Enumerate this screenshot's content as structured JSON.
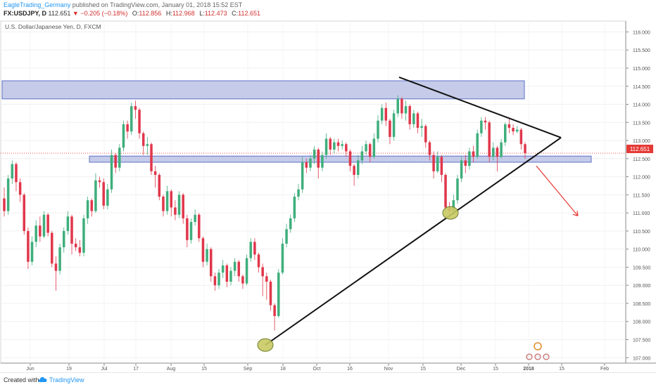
{
  "header": {
    "author": "EagleTrading_Germany",
    "published_text": "published on TradingView.com, January 01, 2018 15:52 EST",
    "symbol": "FX:USDJPY, D",
    "last": "112.651",
    "change": "▼ −0.205 (−0.18%)",
    "open_label": "O:",
    "open": "112.856",
    "high_label": "H:",
    "high": "112.968",
    "low_label": "L:",
    "low": "112.473",
    "close_label": "C:",
    "close": "112.651"
  },
  "footer": {
    "created_with": "Created with",
    "brand": "TradingView"
  },
  "colors": {
    "up": "#3fae7c",
    "down": "#e0374b",
    "zone_fill": "#c5cbe8",
    "zone_stroke": "#5f72c9",
    "trendline": "#111111",
    "arrow": "#e53935",
    "marker_fill": "#c9c963",
    "marker_stroke": "#6b7d2a",
    "price_tag": "#e53935"
  },
  "chart_data": {
    "type": "candlestick",
    "title": "U.S. Dollar/Japanese Yen, D, FXCM",
    "ylim": [
      106.85,
      116.3
    ],
    "y_ticks": [
      "116.000",
      "115.500",
      "115.000",
      "114.500",
      "114.000",
      "113.500",
      "113.000",
      "112.500",
      "112.000",
      "111.500",
      "111.000",
      "110.500",
      "110.000",
      "109.500",
      "109.000",
      "108.500",
      "108.000",
      "107.500",
      "107.000"
    ],
    "x_ticks": [
      "Jun",
      "19",
      "Jul",
      "17",
      "Aug",
      "15",
      "Sep",
      "18",
      "Oct",
      "16",
      "Nov",
      "15",
      "Dec",
      "15",
      "2018",
      "15",
      "Feb"
    ],
    "last_price": "112.651",
    "candles": [
      [
        111.4,
        111.05,
        111.7,
        110.9
      ],
      [
        111.05,
        111.95,
        112.05,
        110.95
      ],
      [
        111.95,
        112.35,
        112.45,
        111.8
      ],
      [
        112.35,
        111.85,
        112.4,
        111.6
      ],
      [
        111.85,
        111.5,
        111.95,
        111.3
      ],
      [
        111.5,
        110.5,
        111.55,
        110.4
      ],
      [
        110.5,
        109.65,
        110.6,
        109.45
      ],
      [
        109.65,
        110.2,
        110.35,
        109.55
      ],
      [
        110.2,
        110.65,
        110.8,
        110.05
      ],
      [
        110.65,
        110.35,
        110.9,
        110.2
      ],
      [
        110.35,
        110.95,
        111.05,
        110.3
      ],
      [
        110.95,
        110.45,
        111.0,
        110.35
      ],
      [
        110.45,
        109.6,
        110.5,
        109.5
      ],
      [
        109.6,
        109.4,
        109.8,
        108.85
      ],
      [
        109.4,
        110.05,
        110.15,
        109.3
      ],
      [
        110.05,
        110.5,
        110.6,
        109.9
      ],
      [
        110.5,
        110.9,
        111.05,
        110.4
      ],
      [
        110.9,
        110.15,
        110.95,
        109.85
      ],
      [
        110.15,
        110.05,
        110.3,
        109.95
      ],
      [
        110.05,
        109.9,
        110.25,
        109.8
      ],
      [
        109.9,
        110.85,
        110.95,
        109.8
      ],
      [
        110.85,
        111.35,
        111.45,
        110.7
      ],
      [
        111.35,
        111.05,
        111.4,
        110.9
      ],
      [
        111.05,
        111.9,
        112.1,
        111.0
      ],
      [
        111.9,
        111.85,
        112.0,
        111.7
      ],
      [
        111.85,
        111.2,
        111.95,
        111.1
      ],
      [
        111.2,
        111.65,
        111.8,
        111.1
      ],
      [
        111.65,
        112.6,
        112.75,
        111.55
      ],
      [
        112.6,
        112.25,
        112.65,
        112.1
      ],
      [
        112.25,
        112.8,
        112.9,
        112.15
      ],
      [
        112.8,
        113.45,
        113.55,
        112.7
      ],
      [
        113.45,
        113.25,
        113.55,
        113.05
      ],
      [
        113.25,
        113.95,
        114.05,
        113.15
      ],
      [
        113.95,
        113.85,
        114.1,
        113.6
      ],
      [
        113.85,
        113.2,
        113.9,
        113.05
      ],
      [
        113.2,
        112.85,
        113.25,
        112.6
      ],
      [
        112.85,
        112.9,
        113.1,
        112.6
      ],
      [
        112.9,
        112.15,
        112.95,
        112.05
      ],
      [
        112.15,
        112.05,
        112.3,
        111.7
      ],
      [
        112.05,
        111.45,
        112.1,
        111.35
      ],
      [
        111.45,
        111.05,
        111.5,
        110.9
      ],
      [
        111.05,
        111.6,
        111.75,
        110.95
      ],
      [
        111.6,
        111.15,
        111.65,
        110.9
      ],
      [
        111.15,
        110.95,
        111.35,
        110.8
      ],
      [
        110.95,
        111.5,
        111.6,
        110.85
      ],
      [
        111.5,
        110.85,
        111.55,
        110.7
      ],
      [
        110.85,
        110.25,
        110.95,
        110.05
      ],
      [
        110.25,
        110.75,
        110.85,
        110.15
      ],
      [
        110.75,
        110.95,
        111.1,
        110.65
      ],
      [
        110.95,
        110.3,
        111.0,
        110.2
      ],
      [
        110.3,
        109.65,
        110.35,
        109.5
      ],
      [
        109.65,
        110.0,
        110.15,
        109.55
      ],
      [
        110.0,
        109.25,
        110.05,
        109.1
      ],
      [
        109.25,
        109.0,
        109.35,
        108.85
      ],
      [
        109.0,
        109.35,
        109.45,
        108.9
      ],
      [
        109.35,
        109.55,
        109.7,
        109.2
      ],
      [
        109.55,
        109.1,
        109.6,
        108.95
      ],
      [
        109.1,
        109.4,
        109.5,
        109.0
      ],
      [
        109.4,
        109.65,
        109.75,
        109.25
      ],
      [
        109.65,
        109.25,
        109.7,
        109.1
      ],
      [
        109.25,
        109.05,
        109.3,
        108.9
      ],
      [
        109.05,
        109.75,
        109.85,
        109.0
      ],
      [
        109.75,
        110.2,
        110.3,
        109.65
      ],
      [
        110.2,
        109.85,
        110.3,
        109.7
      ],
      [
        109.85,
        109.5,
        109.9,
        109.35
      ],
      [
        109.5,
        109.25,
        109.6,
        108.7
      ],
      [
        109.25,
        109.1,
        109.35,
        108.6
      ],
      [
        109.1,
        108.45,
        109.15,
        108.3
      ],
      [
        108.45,
        108.15,
        108.5,
        107.75
      ],
      [
        108.15,
        109.35,
        109.45,
        108.1
      ],
      [
        109.35,
        110.15,
        110.3,
        109.3
      ],
      [
        110.15,
        110.55,
        110.7,
        110.05
      ],
      [
        110.55,
        110.85,
        110.95,
        110.45
      ],
      [
        110.85,
        111.45,
        111.55,
        110.75
      ],
      [
        111.45,
        111.65,
        111.8,
        111.35
      ],
      [
        111.65,
        112.4,
        112.55,
        111.55
      ],
      [
        112.4,
        112.25,
        112.5,
        112.1
      ],
      [
        112.25,
        112.5,
        112.6,
        112.15
      ],
      [
        112.5,
        112.75,
        112.85,
        112.35
      ],
      [
        112.75,
        112.25,
        112.8,
        111.95
      ],
      [
        112.25,
        112.6,
        112.7,
        112.15
      ],
      [
        112.6,
        113.05,
        113.2,
        112.5
      ],
      [
        113.05,
        112.75,
        113.1,
        112.6
      ],
      [
        112.75,
        112.95,
        113.05,
        112.65
      ],
      [
        112.95,
        112.85,
        113.05,
        112.7
      ],
      [
        112.85,
        112.9,
        113.0,
        112.75
      ],
      [
        112.9,
        112.7,
        112.95,
        112.55
      ],
      [
        112.7,
        112.3,
        112.75,
        112.15
      ],
      [
        112.3,
        112.05,
        112.35,
        111.75
      ],
      [
        112.05,
        112.45,
        112.6,
        111.95
      ],
      [
        112.45,
        112.7,
        112.85,
        112.35
      ],
      [
        112.7,
        112.9,
        113.0,
        112.6
      ],
      [
        112.9,
        112.55,
        112.95,
        112.4
      ],
      [
        112.55,
        113.05,
        113.2,
        112.5
      ],
      [
        113.05,
        113.55,
        113.7,
        112.95
      ],
      [
        113.55,
        113.9,
        114.0,
        113.45
      ],
      [
        113.9,
        113.55,
        114.05,
        113.4
      ],
      [
        113.55,
        113.1,
        113.6,
        112.9
      ],
      [
        113.1,
        113.75,
        113.85,
        113.0
      ],
      [
        113.75,
        114.15,
        114.25,
        113.65
      ],
      [
        114.15,
        113.75,
        114.2,
        113.6
      ],
      [
        113.75,
        113.95,
        114.1,
        113.55
      ],
      [
        113.95,
        113.45,
        114.0,
        113.3
      ],
      [
        113.45,
        113.75,
        113.85,
        113.35
      ],
      [
        113.75,
        113.35,
        113.8,
        113.2
      ],
      [
        113.35,
        113.4,
        113.6,
        113.1
      ],
      [
        113.4,
        112.95,
        113.45,
        112.8
      ],
      [
        112.95,
        112.6,
        113.0,
        112.45
      ],
      [
        112.6,
        112.15,
        112.7,
        111.95
      ],
      [
        112.15,
        112.55,
        112.7,
        112.1
      ],
      [
        112.55,
        112.05,
        112.6,
        111.85
      ],
      [
        112.05,
        111.15,
        112.1,
        111.05
      ],
      [
        111.15,
        111.05,
        111.3,
        110.95
      ],
      [
        111.05,
        111.35,
        111.5,
        110.95
      ],
      [
        111.35,
        111.95,
        112.05,
        111.25
      ],
      [
        111.95,
        112.45,
        112.55,
        111.85
      ],
      [
        112.45,
        112.3,
        112.6,
        112.1
      ],
      [
        112.3,
        112.7,
        112.8,
        112.2
      ],
      [
        112.7,
        112.55,
        112.85,
        112.4
      ],
      [
        112.55,
        113.2,
        113.3,
        112.5
      ],
      [
        113.2,
        113.55,
        113.65,
        113.1
      ],
      [
        113.55,
        113.5,
        113.65,
        113.3
      ],
      [
        113.5,
        112.55,
        113.55,
        112.4
      ],
      [
        112.55,
        112.8,
        112.95,
        112.45
      ],
      [
        112.8,
        112.55,
        112.85,
        112.15
      ],
      [
        112.55,
        112.95,
        113.05,
        112.5
      ],
      [
        112.95,
        113.45,
        113.5,
        112.85
      ],
      [
        113.45,
        113.35,
        113.6,
        113.2
      ],
      [
        113.35,
        113.25,
        113.45,
        113.15
      ],
      [
        113.25,
        113.3,
        113.4,
        113.2
      ],
      [
        113.3,
        112.9,
        113.35,
        112.75
      ],
      [
        112.9,
        112.65,
        112.95,
        112.5
      ]
    ],
    "annotations": {
      "resistance_zone": [
        114.15,
        114.65
      ],
      "support_zone": [
        112.4,
        112.57
      ],
      "trendline_upper": "from Nov high (114.75) to apex (113.08)",
      "trendline_lower": "from Sep low (107.35) to apex (113.08)",
      "marker_lows": [
        107.35,
        111.0
      ],
      "arrow_direction": "down-right"
    }
  }
}
